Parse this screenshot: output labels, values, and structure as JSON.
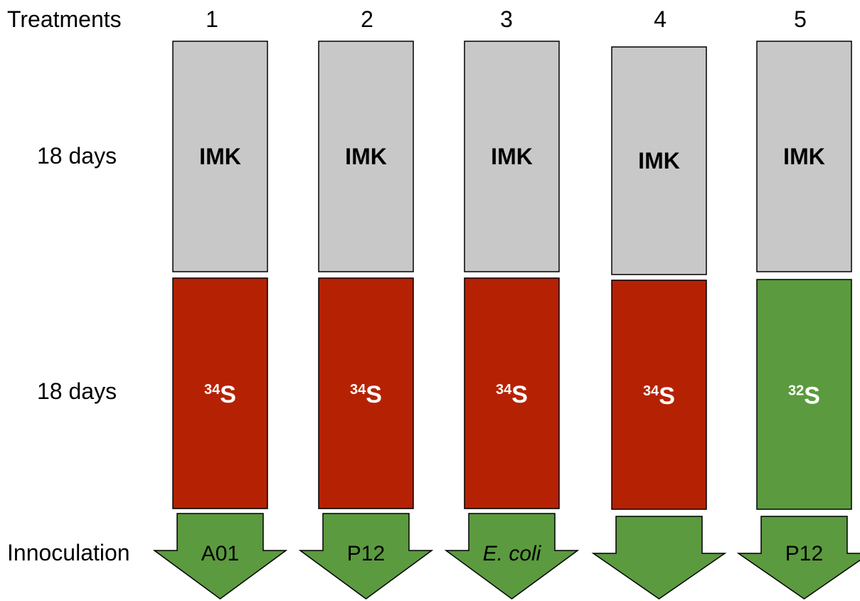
{
  "header_label": "Treatments",
  "row_labels": {
    "phase1": "18 days",
    "phase2": "18 days",
    "inoculation": "Innoculation"
  },
  "colors": {
    "imk_fill": "#c8c8c8",
    "s34_fill": "#b52203",
    "s32_fill": "#5b9a3f",
    "arrow_fill": "#5b9a3f",
    "outline": "#000000"
  },
  "treatments": [
    {
      "number": "1",
      "phase1": "IMK",
      "isotope_mass": "34",
      "isotope_symbol": "S",
      "isotope": "34S",
      "isotope_color": "red",
      "inoculum": "A01",
      "inoculum_italic": false
    },
    {
      "number": "2",
      "phase1": "IMK",
      "isotope_mass": "34",
      "isotope_symbol": "S",
      "isotope": "34S",
      "isotope_color": "red",
      "inoculum": "P12",
      "inoculum_italic": false
    },
    {
      "number": "3",
      "phase1": "IMK",
      "isotope_mass": "34",
      "isotope_symbol": "S",
      "isotope": "34S",
      "isotope_color": "red",
      "inoculum": "E. coli",
      "inoculum_italic": true
    },
    {
      "number": "4",
      "phase1": "IMK",
      "isotope_mass": "34",
      "isotope_symbol": "S",
      "isotope": "34S",
      "isotope_color": "red",
      "inoculum": "",
      "inoculum_italic": false
    },
    {
      "number": "5",
      "phase1": "IMK",
      "isotope_mass": "32",
      "isotope_symbol": "S",
      "isotope": "32S",
      "isotope_color": "green",
      "inoculum": "P12",
      "inoculum_italic": false
    }
  ]
}
